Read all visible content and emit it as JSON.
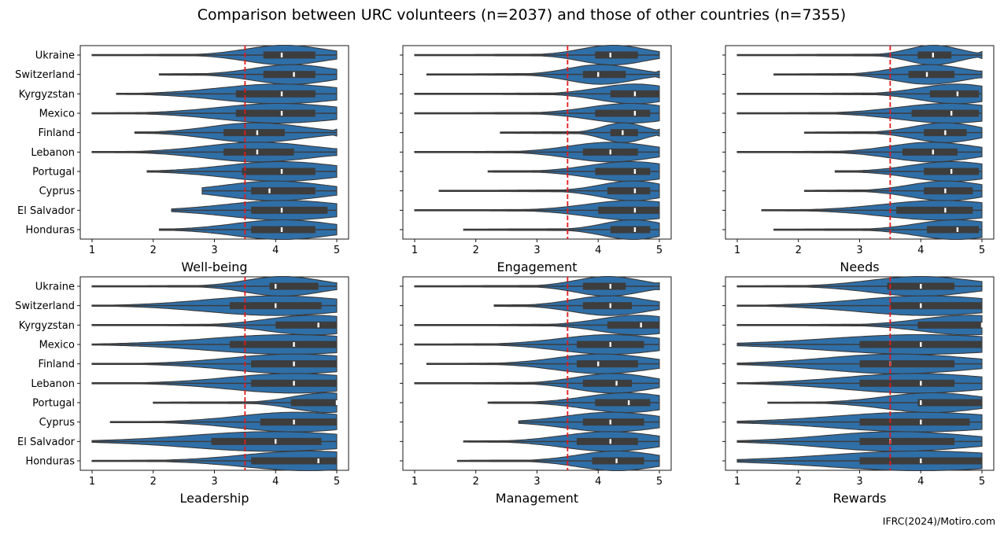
{
  "figure": {
    "title": "Comparison between URC volunteers (n=2037) and those of other countries (n=7355)",
    "source": "IFRC(2024)/Motiro.com"
  },
  "chart_data": {
    "type": "violin",
    "categories": [
      "Ukraine",
      "Switzerland",
      "Kyrgyzstan",
      "Mexico",
      "Finland",
      "Lebanon",
      "Portugal",
      "Cyprus",
      "El Salvador",
      "Honduras"
    ],
    "xlim": [
      1,
      5
    ],
    "xticks": [
      1,
      2,
      3,
      4,
      5
    ],
    "reference_line": {
      "x": 3.5,
      "color": "#e31a1c",
      "style": "dashed"
    },
    "violin_color": "#2f6fa8",
    "box_color": "#3d3d3d",
    "panels": [
      {
        "xlabel": "Well-being",
        "stats": [
          {
            "min": 1.0,
            "q1": 3.8,
            "median": 4.1,
            "q3": 4.65,
            "max": 5.0
          },
          {
            "min": 2.1,
            "q1": 3.8,
            "median": 4.3,
            "q3": 4.65,
            "max": 5.0
          },
          {
            "min": 1.4,
            "q1": 3.35,
            "median": 4.1,
            "q3": 4.65,
            "max": 5.0
          },
          {
            "min": 1.0,
            "q1": 3.35,
            "median": 4.1,
            "q3": 4.65,
            "max": 5.0
          },
          {
            "min": 1.7,
            "q1": 3.15,
            "median": 3.7,
            "q3": 4.15,
            "max": 5.0
          },
          {
            "min": 1.0,
            "q1": 3.15,
            "median": 3.7,
            "q3": 4.3,
            "max": 5.0
          },
          {
            "min": 1.9,
            "q1": 3.45,
            "median": 4.1,
            "q3": 4.65,
            "max": 5.0
          },
          {
            "min": 2.8,
            "q1": 3.6,
            "median": 3.9,
            "q3": 4.65,
            "max": 5.0
          },
          {
            "min": 2.3,
            "q1": 3.6,
            "median": 4.1,
            "q3": 4.85,
            "max": 5.0
          },
          {
            "min": 2.1,
            "q1": 3.6,
            "median": 4.1,
            "q3": 4.65,
            "max": 5.0
          }
        ]
      },
      {
        "xlabel": "Engagement",
        "stats": [
          {
            "min": 1.0,
            "q1": 3.95,
            "median": 4.2,
            "q3": 4.65,
            "max": 5.0
          },
          {
            "min": 1.2,
            "q1": 3.75,
            "median": 4.0,
            "q3": 4.45,
            "max": 5.0
          },
          {
            "min": 1.0,
            "q1": 4.2,
            "median": 4.6,
            "q3": 5.0,
            "max": 5.0
          },
          {
            "min": 1.0,
            "q1": 3.95,
            "median": 4.6,
            "q3": 4.85,
            "max": 5.0
          },
          {
            "min": 2.4,
            "q1": 4.2,
            "median": 4.4,
            "q3": 4.65,
            "max": 5.0
          },
          {
            "min": 1.0,
            "q1": 3.75,
            "median": 4.2,
            "q3": 4.65,
            "max": 5.0
          },
          {
            "min": 2.2,
            "q1": 3.95,
            "median": 4.6,
            "q3": 4.85,
            "max": 5.0
          },
          {
            "min": 1.4,
            "q1": 4.15,
            "median": 4.6,
            "q3": 4.85,
            "max": 5.0
          },
          {
            "min": 1.0,
            "q1": 4.0,
            "median": 4.6,
            "q3": 5.0,
            "max": 5.0
          },
          {
            "min": 1.8,
            "q1": 4.2,
            "median": 4.6,
            "q3": 4.85,
            "max": 5.0
          }
        ]
      },
      {
        "xlabel": "Needs",
        "stats": [
          {
            "min": 1.0,
            "q1": 3.95,
            "median": 4.2,
            "q3": 4.5,
            "max": 5.0
          },
          {
            "min": 1.6,
            "q1": 3.8,
            "median": 4.1,
            "q3": 4.55,
            "max": 5.0
          },
          {
            "min": 1.0,
            "q1": 4.15,
            "median": 4.6,
            "q3": 4.95,
            "max": 5.0
          },
          {
            "min": 1.0,
            "q1": 3.85,
            "median": 4.5,
            "q3": 4.95,
            "max": 5.0
          },
          {
            "min": 2.1,
            "q1": 4.05,
            "median": 4.4,
            "q3": 4.75,
            "max": 5.0
          },
          {
            "min": 1.0,
            "q1": 3.7,
            "median": 4.2,
            "q3": 4.6,
            "max": 5.0
          },
          {
            "min": 2.6,
            "q1": 4.05,
            "median": 4.5,
            "q3": 4.95,
            "max": 5.0
          },
          {
            "min": 2.1,
            "q1": 4.05,
            "median": 4.4,
            "q3": 4.85,
            "max": 5.0
          },
          {
            "min": 1.4,
            "q1": 3.6,
            "median": 4.4,
            "q3": 4.85,
            "max": 5.0
          },
          {
            "min": 1.6,
            "q1": 4.1,
            "median": 4.6,
            "q3": 4.95,
            "max": 5.0
          }
        ]
      },
      {
        "xlabel": "Leadership",
        "stats": [
          {
            "min": 1.0,
            "q1": 3.9,
            "median": 4.0,
            "q3": 4.7,
            "max": 5.0
          },
          {
            "min": 1.0,
            "q1": 3.25,
            "median": 4.0,
            "q3": 4.75,
            "max": 5.0
          },
          {
            "min": 1.0,
            "q1": 4.0,
            "median": 4.7,
            "q3": 5.0,
            "max": 5.0
          },
          {
            "min": 1.0,
            "q1": 3.25,
            "median": 4.3,
            "q3": 5.0,
            "max": 5.0
          },
          {
            "min": 1.0,
            "q1": 3.6,
            "median": 4.3,
            "q3": 5.0,
            "max": 5.0
          },
          {
            "min": 1.0,
            "q1": 3.6,
            "median": 4.3,
            "q3": 5.0,
            "max": 5.0
          },
          {
            "min": 2.0,
            "q1": 4.25,
            "median": 5.0,
            "q3": 5.0,
            "max": 5.0
          },
          {
            "min": 1.3,
            "q1": 3.75,
            "median": 4.3,
            "q3": 5.0,
            "max": 5.0
          },
          {
            "min": 1.0,
            "q1": 2.95,
            "median": 4.0,
            "q3": 4.75,
            "max": 5.0
          },
          {
            "min": 1.0,
            "q1": 3.6,
            "median": 4.7,
            "q3": 5.0,
            "max": 5.0
          }
        ]
      },
      {
        "xlabel": "Management",
        "stats": [
          {
            "min": 1.0,
            "q1": 3.75,
            "median": 4.2,
            "q3": 4.45,
            "max": 5.0
          },
          {
            "min": 2.3,
            "q1": 3.75,
            "median": 4.2,
            "q3": 4.55,
            "max": 5.0
          },
          {
            "min": 1.0,
            "q1": 4.15,
            "median": 4.7,
            "q3": 5.0,
            "max": 5.0
          },
          {
            "min": 1.0,
            "q1": 3.65,
            "median": 4.2,
            "q3": 4.75,
            "max": 5.0
          },
          {
            "min": 1.2,
            "q1": 3.65,
            "median": 4.0,
            "q3": 4.65,
            "max": 5.0
          },
          {
            "min": 1.0,
            "q1": 3.75,
            "median": 4.3,
            "q3": 4.55,
            "max": 5.0
          },
          {
            "min": 2.2,
            "q1": 3.95,
            "median": 4.5,
            "q3": 4.85,
            "max": 5.0
          },
          {
            "min": 2.7,
            "q1": 3.75,
            "median": 4.2,
            "q3": 4.75,
            "max": 5.0
          },
          {
            "min": 1.8,
            "q1": 3.65,
            "median": 4.2,
            "q3": 4.65,
            "max": 5.0
          },
          {
            "min": 1.7,
            "q1": 3.9,
            "median": 4.3,
            "q3": 4.75,
            "max": 5.0
          }
        ]
      },
      {
        "xlabel": "Rewards",
        "stats": [
          {
            "min": 1.0,
            "q1": 3.45,
            "median": 4.0,
            "q3": 4.55,
            "max": 5.0
          },
          {
            "min": 1.0,
            "q1": 3.5,
            "median": 4.0,
            "q3": 5.0,
            "max": 5.0
          },
          {
            "min": 1.0,
            "q1": 3.95,
            "median": 5.0,
            "q3": 5.0,
            "max": 5.0
          },
          {
            "min": 1.0,
            "q1": 3.0,
            "median": 4.0,
            "q3": 5.0,
            "max": 5.0
          },
          {
            "min": 1.0,
            "q1": 3.0,
            "median": 3.5,
            "q3": 4.55,
            "max": 5.0
          },
          {
            "min": 1.0,
            "q1": 3.0,
            "median": 4.0,
            "q3": 4.55,
            "max": 5.0
          },
          {
            "min": 1.5,
            "q1": 3.95,
            "median": 4.0,
            "q3": 5.0,
            "max": 5.0
          },
          {
            "min": 1.0,
            "q1": 3.0,
            "median": 4.0,
            "q3": 4.8,
            "max": 5.0
          },
          {
            "min": 1.0,
            "q1": 3.0,
            "median": 3.5,
            "q3": 4.55,
            "max": 5.0
          },
          {
            "min": 1.0,
            "q1": 3.0,
            "median": 4.0,
            "q3": 5.0,
            "max": 5.0
          }
        ]
      }
    ]
  }
}
